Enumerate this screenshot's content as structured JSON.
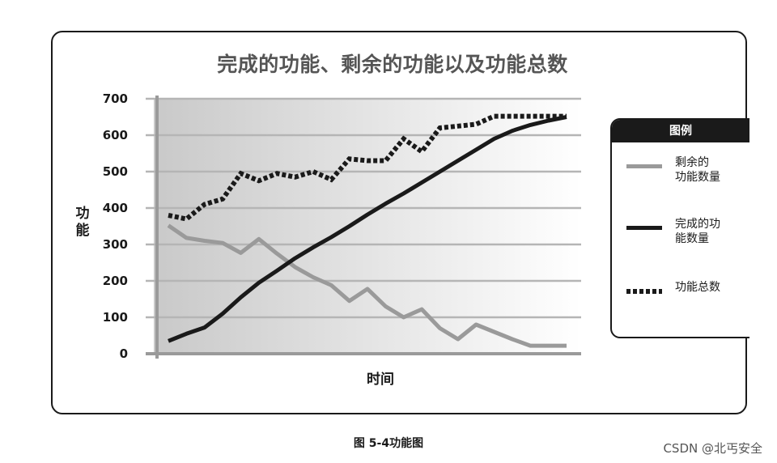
{
  "chart_data": {
    "type": "line",
    "title": "完成的功能、剩余的功能以及功能总数",
    "xlabel": "时间",
    "ylabel": "功能",
    "ylim": [
      0,
      700
    ],
    "yticks": [
      "0",
      "100",
      "200",
      "300",
      "400",
      "500",
      "600",
      "700"
    ],
    "grid": true,
    "legend": {
      "title": "图例",
      "placement": "right"
    },
    "x": [
      1,
      2,
      3,
      4,
      5,
      6,
      7,
      8,
      9,
      10,
      11,
      12,
      13,
      14,
      15,
      16,
      17,
      18,
      19,
      20,
      21,
      22,
      23
    ],
    "series": [
      {
        "name": "剩余的功能数量",
        "color": "#9a9a9a",
        "style": "solid",
        "values": [
          352,
          318,
          310,
          304,
          277,
          315,
          275,
          238,
          210,
          188,
          145,
          178,
          130,
          100,
          122,
          70,
          40,
          80,
          60,
          40,
          22,
          22,
          22
        ]
      },
      {
        "name": "完成的功能数量",
        "color": "#1a1a1a",
        "style": "solid",
        "values": [
          35,
          55,
          72,
          110,
          155,
          195,
          228,
          262,
          292,
          320,
          350,
          382,
          412,
          440,
          470,
          500,
          530,
          560,
          590,
          612,
          628,
          640,
          650
        ]
      },
      {
        "name": "功能总数",
        "color": "#1a1a1a",
        "style": "dotted",
        "values": [
          380,
          370,
          410,
          425,
          495,
          475,
          495,
          485,
          500,
          478,
          535,
          530,
          530,
          590,
          555,
          620,
          625,
          630,
          652,
          652,
          652,
          652,
          652
        ]
      }
    ],
    "legend_entries": [
      {
        "label": "剩余的\n功能数量",
        "series": 0
      },
      {
        "label": "完成的功\n能数量",
        "series": 1
      },
      {
        "label": "功能总数",
        "series": 2
      }
    ]
  },
  "caption": "图 5-4功能图",
  "watermark": "CSDN @北丐安全"
}
